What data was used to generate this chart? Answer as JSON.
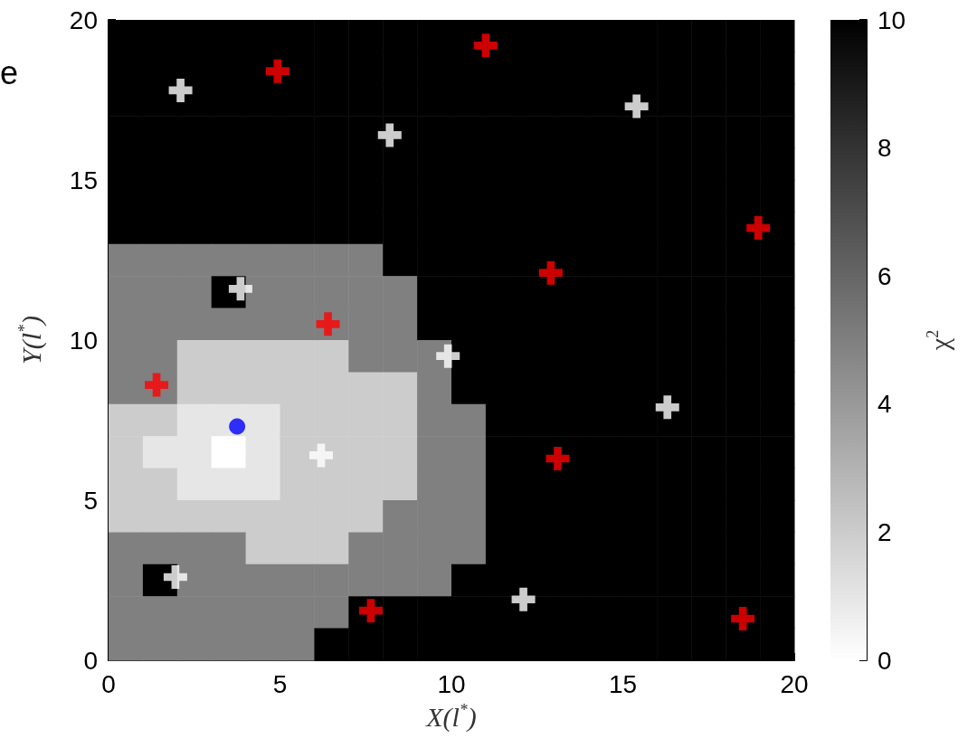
{
  "chart_data": {
    "type": "heatmap",
    "xlabel": "X(l$^{*}$)",
    "ylabel": "Y(l$^{*}$)",
    "clabel": "χ$^{2}$",
    "annotations": [
      "e"
    ],
    "x": [
      0.5,
      1.5,
      2.5,
      3.5,
      4.5,
      5.5,
      6.5,
      7.5,
      8.5,
      9.5,
      10.5,
      11.5,
      12.5,
      13.5,
      14.5,
      15.5,
      16.5,
      17.5,
      18.5,
      19.5
    ],
    "xlim": [
      0,
      20
    ],
    "ylim": [
      0,
      20
    ],
    "xticks": [
      0,
      5,
      10,
      15,
      20
    ],
    "yticks": [
      0,
      5,
      10,
      15,
      20
    ],
    "clim": [
      0,
      10
    ],
    "cticks": [
      0,
      2,
      4,
      6,
      8,
      10
    ],
    "cells": [
      [
        10,
        10,
        10,
        10,
        10,
        10,
        10,
        10,
        10,
        10,
        10,
        10,
        10,
        10,
        10,
        10,
        10,
        10,
        10,
        10
      ],
      [
        10,
        10,
        10,
        10,
        10,
        10,
        10,
        10,
        10,
        10,
        10,
        10,
        10,
        10,
        10,
        10,
        10,
        10,
        10,
        10
      ],
      [
        10,
        10,
        10,
        10,
        10,
        10,
        10,
        10,
        10,
        10,
        10,
        10,
        10,
        10,
        10,
        10,
        10,
        10,
        10,
        10
      ],
      [
        10,
        10,
        10,
        10,
        10,
        10,
        10,
        10,
        10,
        10,
        10,
        10,
        10,
        10,
        10,
        10,
        10,
        10,
        10,
        10
      ],
      [
        10,
        10,
        10,
        10,
        10,
        10,
        10,
        10,
        10,
        10,
        10,
        10,
        10,
        10,
        10,
        10,
        10,
        10,
        10,
        10
      ],
      [
        10,
        10,
        10,
        10,
        10,
        10,
        10,
        10,
        10,
        10,
        10,
        10,
        10,
        10,
        10,
        10,
        10,
        10,
        10,
        10
      ],
      [
        10,
        10,
        10,
        10,
        10,
        10,
        10,
        10,
        10,
        10,
        10,
        10,
        10,
        10,
        10,
        10,
        10,
        10,
        10,
        10
      ],
      [
        5,
        5,
        5,
        5,
        5,
        5,
        5,
        5,
        10,
        10,
        10,
        10,
        10,
        10,
        10,
        10,
        10,
        10,
        10,
        10
      ],
      [
        5,
        5,
        5,
        10,
        5,
        5,
        5,
        5,
        5,
        10,
        10,
        10,
        10,
        10,
        10,
        10,
        10,
        10,
        10,
        10
      ],
      [
        5,
        5,
        5,
        5,
        5,
        5,
        5,
        5,
        5,
        10,
        10,
        10,
        10,
        10,
        10,
        10,
        10,
        10,
        10,
        10
      ],
      [
        5,
        5,
        2,
        2,
        2,
        2,
        2,
        5,
        5,
        5,
        10,
        10,
        10,
        10,
        10,
        10,
        10,
        10,
        10,
        10
      ],
      [
        5,
        5,
        2,
        2,
        2,
        2,
        2,
        2,
        2,
        5,
        10,
        10,
        10,
        10,
        10,
        10,
        10,
        10,
        10,
        10
      ],
      [
        2,
        2,
        1,
        1,
        1,
        2,
        2,
        2,
        2,
        5,
        5,
        10,
        10,
        10,
        10,
        10,
        10,
        10,
        10,
        10
      ],
      [
        2,
        1,
        1,
        0,
        1,
        2,
        2,
        2,
        2,
        5,
        5,
        10,
        10,
        10,
        10,
        10,
        10,
        10,
        10,
        10
      ],
      [
        2,
        2,
        1,
        1,
        1,
        2,
        2,
        2,
        2,
        5,
        5,
        10,
        10,
        10,
        10,
        10,
        10,
        10,
        10,
        10
      ],
      [
        2,
        2,
        2,
        2,
        2,
        2,
        2,
        2,
        5,
        5,
        5,
        10,
        10,
        10,
        10,
        10,
        10,
        10,
        10,
        10
      ],
      [
        5,
        5,
        5,
        5,
        2,
        2,
        2,
        5,
        5,
        5,
        5,
        10,
        10,
        10,
        10,
        10,
        10,
        10,
        10,
        10
      ],
      [
        5,
        10,
        5,
        5,
        5,
        5,
        5,
        5,
        5,
        5,
        10,
        10,
        10,
        10,
        10,
        10,
        10,
        10,
        10,
        10
      ],
      [
        5,
        5,
        5,
        5,
        5,
        5,
        5,
        10,
        10,
        10,
        10,
        10,
        10,
        10,
        10,
        10,
        10,
        10,
        10,
        10
      ],
      [
        5,
        5,
        5,
        5,
        5,
        5,
        10,
        10,
        10,
        10,
        10,
        10,
        10,
        10,
        10,
        10,
        10,
        10,
        10,
        10
      ]
    ],
    "series": [
      {
        "type": "scatter",
        "color": "#ff0000",
        "marker": "cross",
        "x": [
          4.93,
          11.0,
          18.95,
          12.9,
          6.4,
          1.4,
          13.1,
          7.65,
          18.5
        ],
        "values": [
          18.4,
          19.2,
          13.5,
          12.1,
          10.5,
          8.6,
          6.3,
          1.55,
          1.3
        ]
      },
      {
        "type": "scatter",
        "color": "#ffffff",
        "marker": "cross",
        "x": [
          2.1,
          8.2,
          15.4,
          3.85,
          9.9,
          16.3,
          6.2,
          1.95,
          12.1
        ],
        "values": [
          17.8,
          16.4,
          17.3,
          11.6,
          9.5,
          7.9,
          6.4,
          2.6,
          1.9
        ]
      },
      {
        "type": "scatter",
        "color": "#0000ff",
        "marker": "circle",
        "x": [
          3.75
        ],
        "values": [
          7.3
        ]
      }
    ],
    "grid": false
  }
}
